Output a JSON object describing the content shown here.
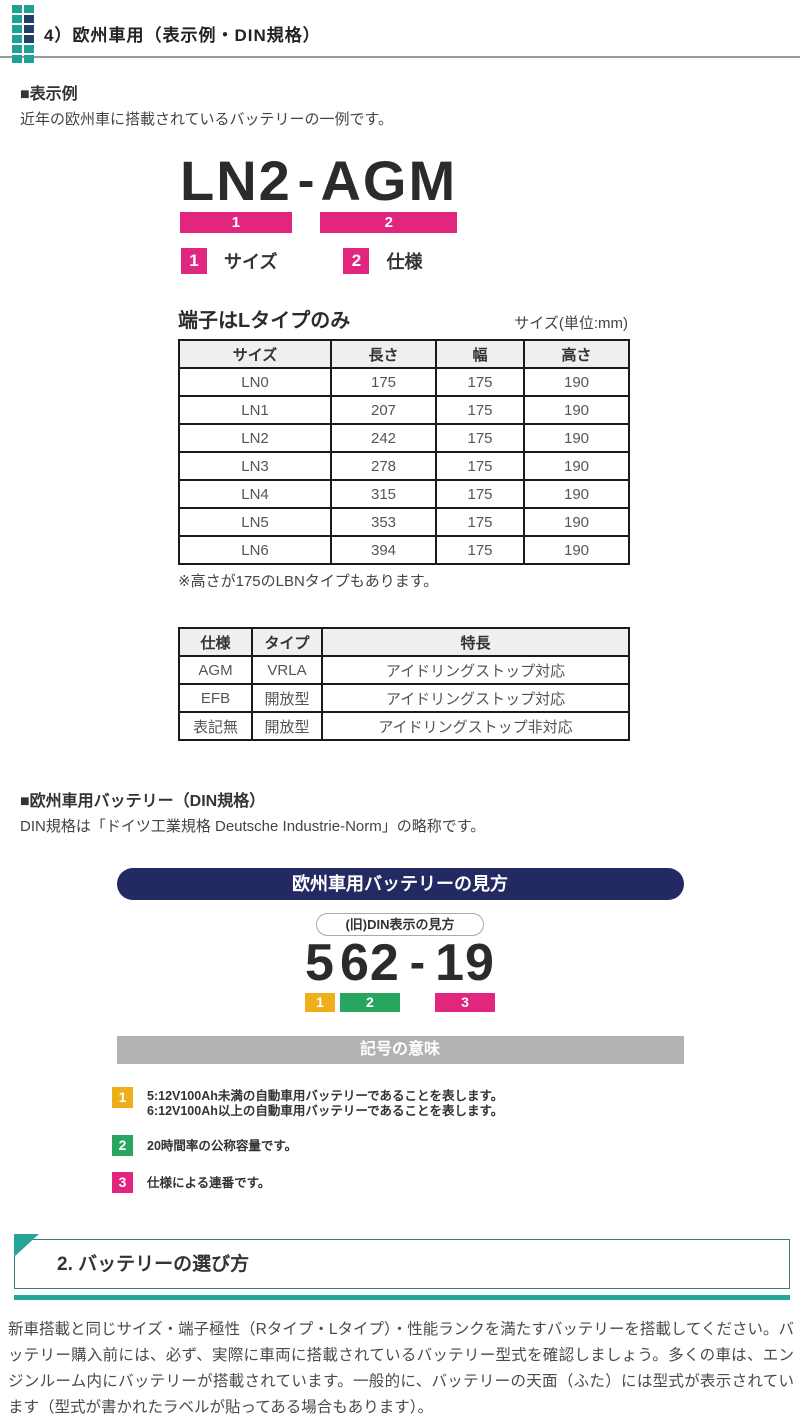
{
  "header": {
    "icon": "grid-dots-icon",
    "title": "4）欧州車用（表示例・DIN規格）"
  },
  "example_section": {
    "heading": "■表示例",
    "description": "近年の欧州車に搭載されているバッテリーの一例です。",
    "code": {
      "size": "LN2",
      "separator": "-",
      "spec": "AGM",
      "marker_size": "1",
      "marker_spec": "2"
    },
    "code_legend": [
      {
        "num": "1",
        "label": "サイズ"
      },
      {
        "num": "2",
        "label": "仕様"
      }
    ],
    "terminal_heading": "端子はLタイプのみ",
    "size_unit": "サイズ(単位:mm)",
    "size_table": {
      "headers": [
        "サイズ",
        "長さ",
        "幅",
        "高さ"
      ],
      "rows": [
        [
          "LN0",
          "175",
          "175",
          "190"
        ],
        [
          "LN1",
          "207",
          "175",
          "190"
        ],
        [
          "LN2",
          "242",
          "175",
          "190"
        ],
        [
          "LN3",
          "278",
          "175",
          "190"
        ],
        [
          "LN4",
          "315",
          "175",
          "190"
        ],
        [
          "LN5",
          "353",
          "175",
          "190"
        ],
        [
          "LN6",
          "394",
          "175",
          "190"
        ]
      ]
    },
    "size_note": "※高さが175のLBNタイプもあります。",
    "spec_table": {
      "headers": [
        "仕様",
        "タイプ",
        "特長"
      ],
      "rows": [
        [
          "AGM",
          "VRLA",
          "アイドリングストップ対応"
        ],
        [
          "EFB",
          "開放型",
          "アイドリングストップ対応"
        ],
        [
          "表記無",
          "開放型",
          "アイドリングストップ非対応"
        ]
      ]
    }
  },
  "din_section": {
    "heading": "■欧州車用バッテリー（DIN規格）",
    "description": "DIN規格は「ドイツ工業規格 Deutsche Industrie-Norm」の略称です。",
    "banner": "欧州車用バッテリーの見方",
    "pill": "(旧)DIN表示の見方",
    "code": {
      "part1": "5",
      "part2": "62",
      "separator": "-",
      "part3": "19",
      "marker1": "1",
      "marker2": "2",
      "marker3": "3"
    },
    "meaning_banner": "記号の意味",
    "legend": [
      {
        "num": "1",
        "lines": [
          "5:12V100Ah未満の自動車用バッテリーであることを表します。",
          "6:12V100Ah以上の自動車用バッテリーであることを表します。"
        ]
      },
      {
        "num": "2",
        "lines": [
          "20時間率の公称容量です。"
        ]
      },
      {
        "num": "3",
        "lines": [
          "仕様による連番です。"
        ]
      }
    ]
  },
  "chapter_section": {
    "title": "2. バッテリーの選び方",
    "body": "新車搭載と同じサイズ・端子極性（Rタイプ・Lタイプ）・性能ランクを満たすバッテリーを搭載してください。バッテリー購入前には、必ず、実際に車両に搭載されているバッテリー型式を確認しましょう。多くの車は、エンジンルーム内にバッテリーが搭載されています。一般的に、バッテリーの天面（ふた）には型式が表示されています（型式が書かれたラベルが貼ってある場合もあります）。"
  },
  "colors": {
    "accent_pink": "#E0267E",
    "accent_yellow": "#EFAF1A",
    "accent_green": "#28A65F",
    "accent_navy": "#232A62",
    "accent_teal": "#26A69A",
    "banner_gray": "#B2B2B2"
  }
}
